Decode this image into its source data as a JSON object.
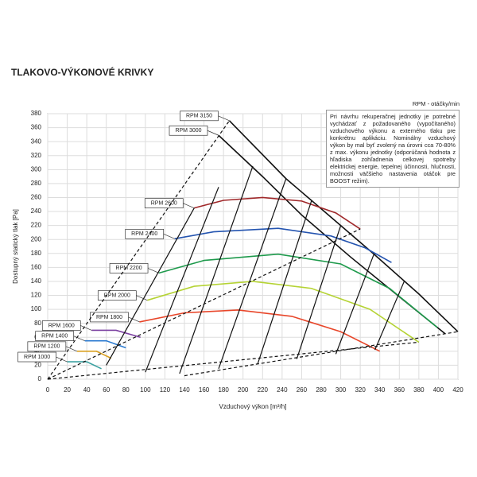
{
  "chart_data": {
    "type": "line",
    "title": "TLAKOVO-VÝKONOVÉ KRIVKY",
    "legend_title": "RPM - otáčky/min",
    "note": "Pri návrhu rekuperačnej jednotky je potrebné vychádzať z požadovaného (vypočítaného) vzduchového výkonu a externého tlaku pre konkrétnu aplikáciu. Nominálny vzduchový výkon by mal byť zvolený na úrovni cca 70-80% z max. výkonu jednotky (odporúčaná hodnota z hľadiska zohľadnenia celkovej spotreby elektrickej energie, tepelnej účinnosti, hlučnosti, možnosti väčšieho nastavenia otáčok pre BOOST režim).",
    "x_label": "Vzduchový výkon [m³/h]",
    "y_label": "Dostupný statický tlak [Pa]",
    "xlim": [
      0,
      420
    ],
    "ylim": [
      0,
      380
    ],
    "xticks": [
      0,
      20,
      40,
      60,
      80,
      100,
      120,
      140,
      160,
      180,
      200,
      220,
      240,
      260,
      280,
      300,
      320,
      340,
      360,
      380,
      400,
      420
    ],
    "yticks": [
      0,
      20,
      40,
      60,
      80,
      100,
      120,
      140,
      160,
      180,
      200,
      220,
      240,
      260,
      280,
      300,
      320,
      340,
      360,
      380
    ],
    "grid": true,
    "series": [
      {
        "name": "RPM 3150",
        "color": "#111111",
        "x": [
          186,
          244,
          290,
          334,
          380,
          420
        ],
        "y": [
          370,
          287,
          232,
          179,
          122,
          68
        ]
      },
      {
        "name": "RPM 3000",
        "color": "#111111",
        "x": [
          175,
          220,
          260,
          310,
          360,
          407
        ],
        "y": [
          349,
          290,
          235,
          175,
          118,
          65
        ]
      },
      {
        "name": "RPM 2600",
        "color": "#a0282a",
        "x": [
          150,
          180,
          220,
          260,
          295,
          320
        ],
        "y": [
          245,
          256,
          260,
          255,
          238,
          215
        ]
      },
      {
        "name": "RPM 2400",
        "color": "#2454b0",
        "x": [
          130,
          170,
          236,
          290,
          325,
          352
        ],
        "y": [
          201,
          211,
          216,
          205,
          188,
          167
        ]
      },
      {
        "name": "RPM 2200",
        "color": "#1e9a4c",
        "x": [
          114,
          160,
          236,
          300,
          350,
          399
        ],
        "y": [
          152,
          170,
          179,
          165,
          130,
          74
        ]
      },
      {
        "name": "RPM 2000",
        "color": "#b5d334",
        "x": [
          102,
          150,
          210,
          270,
          330,
          380
        ],
        "y": [
          113,
          133,
          140,
          130,
          100,
          53
        ]
      },
      {
        "name": "RPM 1800",
        "color": "#e8462a",
        "x": [
          94,
          140,
          195,
          250,
          300,
          340
        ],
        "y": [
          82,
          95,
          99,
          90,
          68,
          40
        ]
      },
      {
        "name": "RPM 1600",
        "color": "#7a3fa0",
        "x": [
          45,
          70,
          95
        ],
        "y": [
          70,
          70,
          60
        ]
      },
      {
        "name": "RPM 1400",
        "color": "#2a7ad0",
        "x": [
          38,
          60,
          80
        ],
        "y": [
          55,
          55,
          45
        ]
      },
      {
        "name": "RPM 1200",
        "color": "#d9a020",
        "x": [
          30,
          50,
          65
        ],
        "y": [
          40,
          40,
          30
        ]
      },
      {
        "name": "RPM 1000",
        "color": "#3aa0a0",
        "x": [
          20,
          40,
          55
        ],
        "y": [
          25,
          25,
          15
        ]
      },
      {
        "color": "#111111",
        "dashed": true,
        "x": [
          0,
          186
        ],
        "y": [
          0,
          370
        ]
      },
      {
        "color": "#111111",
        "dashed": true,
        "x": [
          0,
          320
        ],
        "y": [
          0,
          215
        ]
      },
      {
        "color": "#111111",
        "dashed": true,
        "x": [
          0,
          380
        ],
        "y": [
          0,
          53
        ]
      },
      {
        "color": "#111111",
        "dashed": true,
        "x": [
          140,
          420
        ],
        "y": [
          5,
          68
        ]
      },
      {
        "color": "#111111",
        "x": [
          150,
          60
        ],
        "y": [
          245,
          20
        ]
      },
      {
        "color": "#111111",
        "x": [
          175,
          100
        ],
        "y": [
          275,
          10
        ]
      },
      {
        "color": "#111111",
        "x": [
          210,
          135
        ],
        "y": [
          305,
          8
        ]
      },
      {
        "color": "#111111",
        "x": [
          244,
          175
        ],
        "y": [
          287,
          15
        ]
      },
      {
        "color": "#111111",
        "x": [
          270,
          215
        ],
        "y": [
          255,
          22
        ]
      },
      {
        "color": "#111111",
        "x": [
          300,
          255
        ],
        "y": [
          220,
          29
        ]
      },
      {
        "color": "#111111",
        "x": [
          334,
          295
        ],
        "y": [
          179,
          36
        ]
      },
      {
        "color": "#111111",
        "x": [
          365,
          335
        ],
        "y": [
          140,
          42
        ]
      }
    ]
  }
}
